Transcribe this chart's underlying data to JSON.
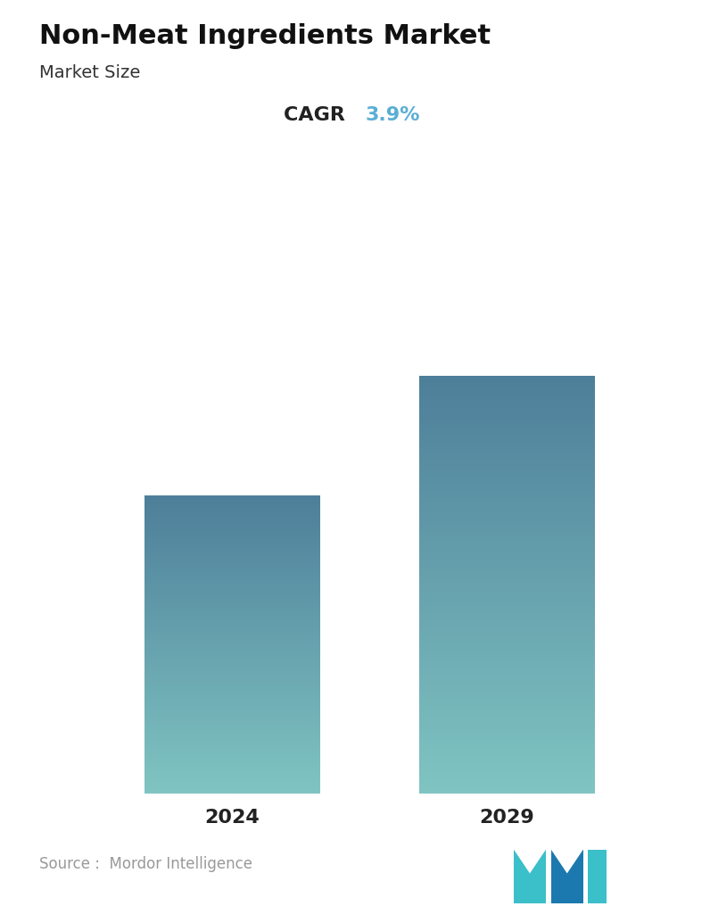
{
  "title": "Non-Meat Ingredients Market",
  "subtitle": "Market Size",
  "cagr_label": "CAGR",
  "cagr_value": "3.9%",
  "cagr_color": "#5BAED4",
  "categories": [
    "2024",
    "2029"
  ],
  "values": [
    0.62,
    0.87
  ],
  "bar_top_color": "#4E7F9A",
  "bar_bottom_color": "#80C5C2",
  "source_text": "Source :  Mordor Intelligence",
  "background_color": "#ffffff",
  "title_fontsize": 22,
  "subtitle_fontsize": 14,
  "cagr_fontsize": 16,
  "tick_fontsize": 16,
  "source_fontsize": 12,
  "bar_width": 0.28,
  "bar_positions": [
    0.28,
    0.72
  ],
  "figsize": [
    7.96,
    10.34
  ],
  "dpi": 100,
  "ylim_max": 1.0,
  "logo_left_color": "#3BBFC9",
  "logo_right_color": "#1B79AF"
}
